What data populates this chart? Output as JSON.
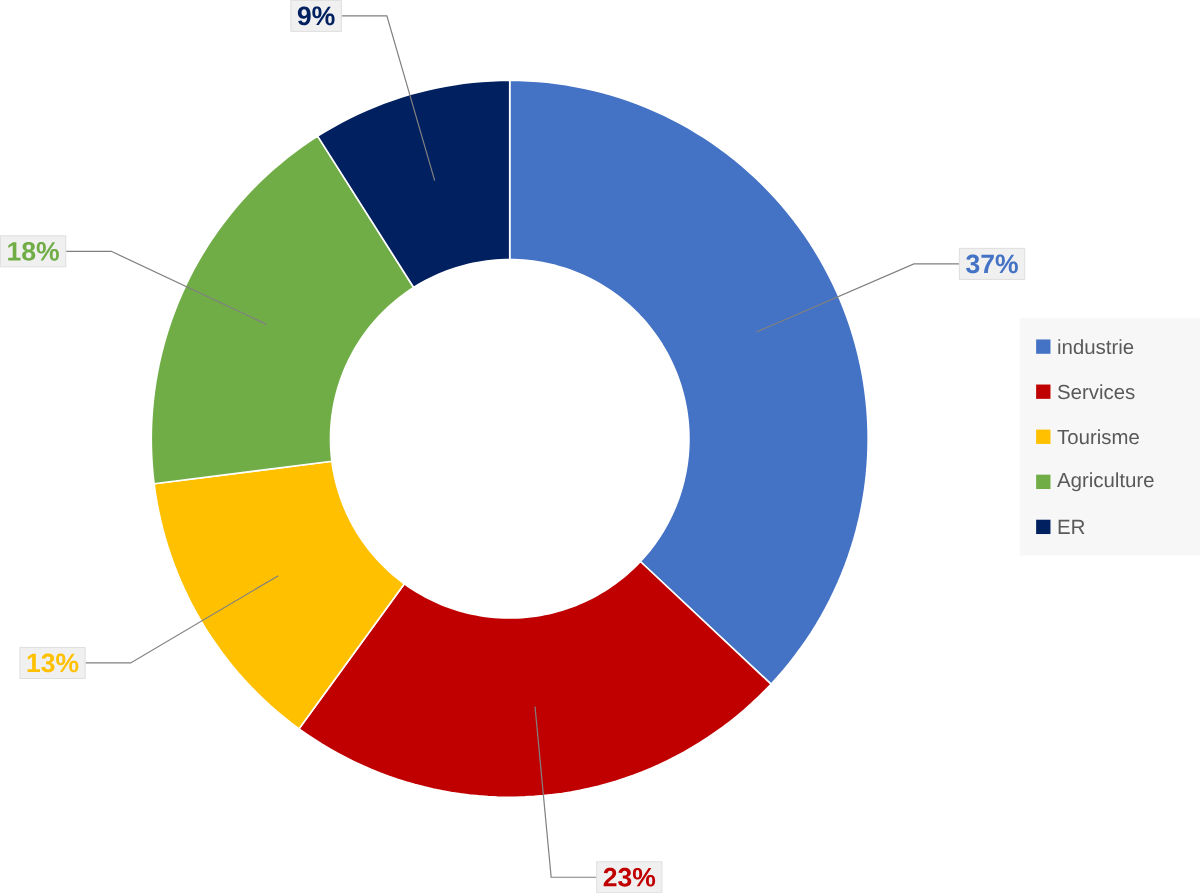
{
  "chart_data": {
    "type": "donut",
    "categories": [
      "industrie",
      "Services",
      "Tourisme",
      "Agriculture",
      "ER"
    ],
    "values": [
      37,
      23,
      13,
      18,
      9
    ],
    "colors": [
      "#4472c4",
      "#c00000",
      "#ffc000",
      "#70ad47",
      "#002060"
    ],
    "value_labels": [
      "37%",
      "23%",
      "13%",
      "18%",
      "9%"
    ],
    "legend": "right"
  }
}
